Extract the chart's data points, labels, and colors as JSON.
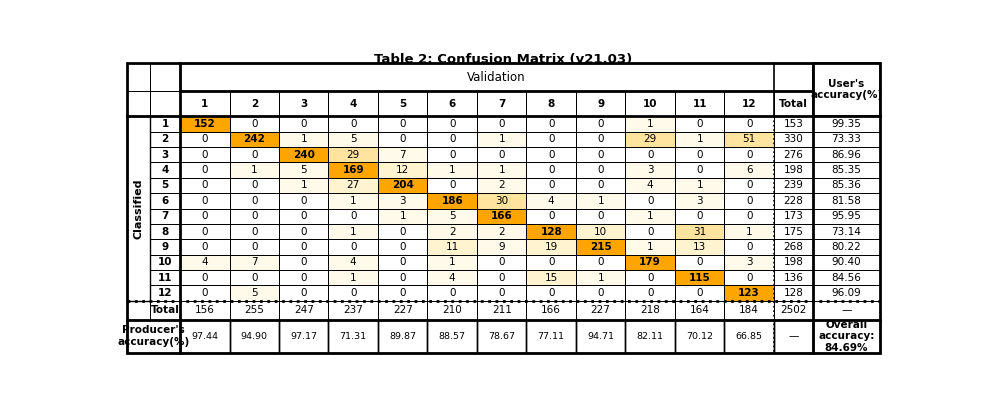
{
  "title": "Table 2: Confusion Matrix (v21.03)",
  "matrix": [
    [
      152,
      0,
      0,
      0,
      0,
      0,
      0,
      0,
      0,
      1,
      0,
      0
    ],
    [
      0,
      242,
      1,
      5,
      0,
      0,
      1,
      0,
      0,
      29,
      1,
      51
    ],
    [
      0,
      0,
      240,
      29,
      7,
      0,
      0,
      0,
      0,
      0,
      0,
      0
    ],
    [
      0,
      1,
      5,
      169,
      12,
      1,
      1,
      0,
      0,
      3,
      0,
      6
    ],
    [
      0,
      0,
      1,
      27,
      204,
      0,
      2,
      0,
      0,
      4,
      1,
      0
    ],
    [
      0,
      0,
      0,
      1,
      3,
      186,
      30,
      4,
      1,
      0,
      3,
      0
    ],
    [
      0,
      0,
      0,
      0,
      1,
      5,
      166,
      0,
      0,
      1,
      0,
      0
    ],
    [
      0,
      0,
      0,
      1,
      0,
      2,
      2,
      128,
      10,
      0,
      31,
      1
    ],
    [
      0,
      0,
      0,
      0,
      0,
      11,
      9,
      19,
      215,
      1,
      13,
      0
    ],
    [
      4,
      7,
      0,
      4,
      0,
      1,
      0,
      0,
      0,
      179,
      0,
      3
    ],
    [
      0,
      0,
      0,
      1,
      0,
      4,
      0,
      15,
      1,
      0,
      115,
      0
    ],
    [
      0,
      5,
      0,
      0,
      0,
      0,
      0,
      0,
      0,
      0,
      0,
      123
    ]
  ],
  "row_totals": [
    153,
    330,
    276,
    198,
    239,
    228,
    173,
    175,
    268,
    198,
    136,
    128
  ],
  "col_totals": [
    156,
    255,
    247,
    237,
    227,
    210,
    211,
    166,
    227,
    218,
    164,
    184
  ],
  "grand_total": 2502,
  "user_accuracy": [
    "99.35",
    "73.33",
    "86.96",
    "85.35",
    "85.36",
    "81.58",
    "95.95",
    "73.14",
    "80.22",
    "90.40",
    "84.56",
    "96.09"
  ],
  "producer_accuracy": [
    "97.44",
    "94.90",
    "97.17",
    "71.31",
    "89.87",
    "88.57",
    "78.67",
    "77.11",
    "94.71",
    "82.11",
    "70.12",
    "66.85"
  ],
  "overall_accuracy": "84.69%",
  "col_labels": [
    "1",
    "2",
    "3",
    "4",
    "5",
    "6",
    "7",
    "8",
    "9",
    "10",
    "11",
    "12"
  ],
  "row_labels": [
    "1",
    "2",
    "3",
    "4",
    "5",
    "6",
    "7",
    "8",
    "9",
    "10",
    "11",
    "12"
  ],
  "color_diagonal": "#FFA500",
  "color_high_off": "#FFE4A0",
  "color_med_off": "#FFF3D0",
  "color_low_off": "#FFFAEA",
  "font_size": 7.5,
  "font_size_small": 6.8,
  "font_size_title": 9.5,
  "bg_light": "#F0F0F0"
}
